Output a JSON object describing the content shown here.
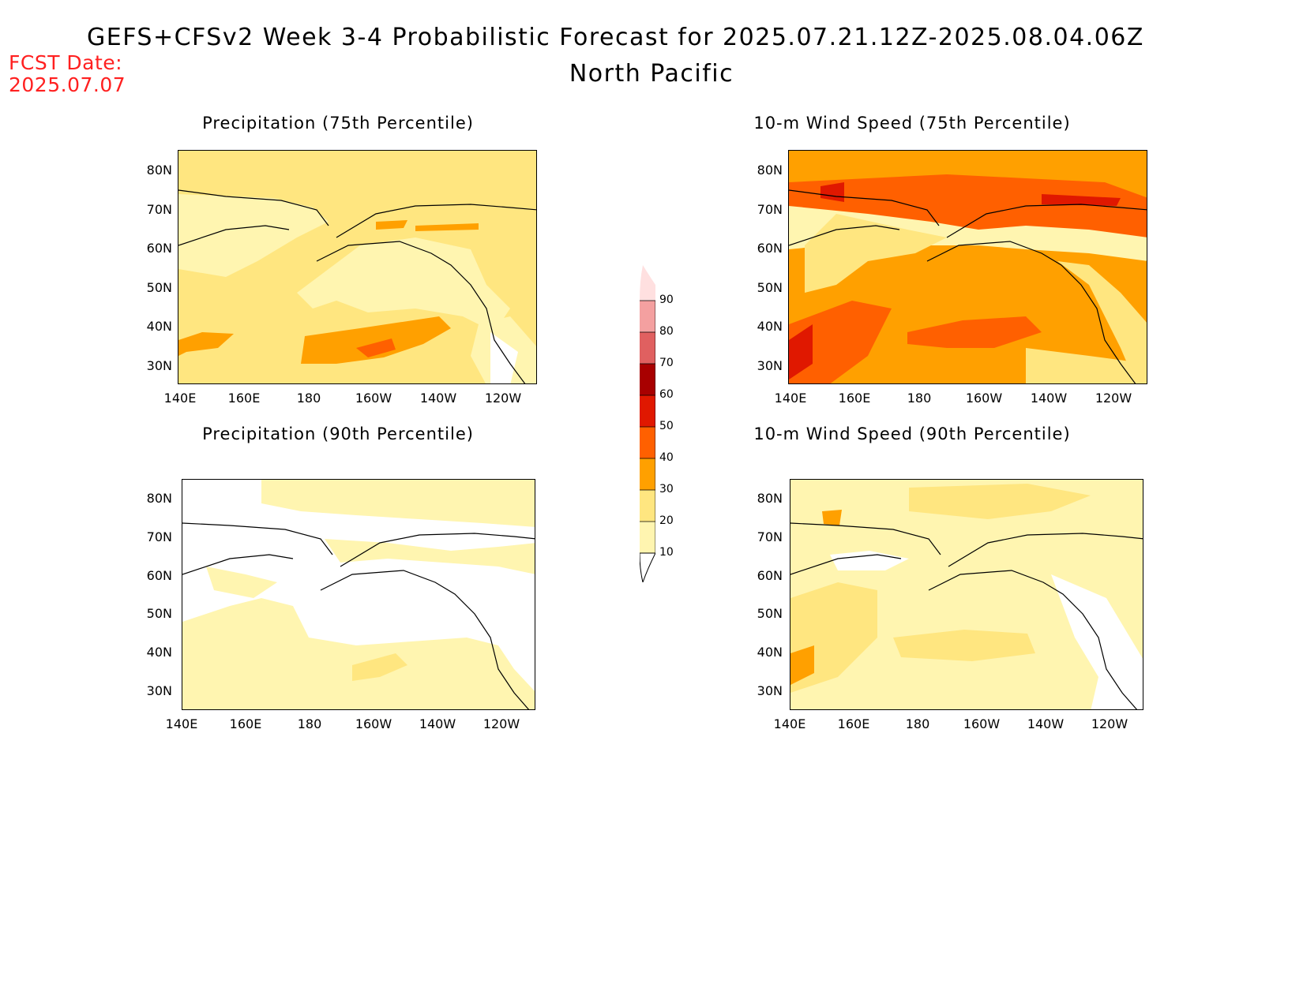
{
  "header": {
    "title": "GEFS+CFSv2 Week 3-4 Probabilistic Forecast for 2025.07.21.12Z-2025.08.04.06Z",
    "subtitle": "North Pacific",
    "fcst_label": "FCST Date:",
    "fcst_value": "2025.07.07"
  },
  "axes": {
    "lat_ticks": [
      "80N",
      "70N",
      "60N",
      "50N",
      "40N",
      "30N"
    ],
    "lon_ticks": [
      "140E",
      "160E",
      "180",
      "160W",
      "140W",
      "120W"
    ]
  },
  "panels": [
    {
      "title": "Precipitation (75th Percentile)",
      "base_color": "#ffe680"
    },
    {
      "title": "10-m Wind Speed (75th Percentile)",
      "base_color": "#ffa000"
    },
    {
      "title": "Precipitation (90th Percentile)",
      "base_color": "#ffffff"
    },
    {
      "title": "10-m Wind Speed (90th Percentile)",
      "base_color": "#fff5b0"
    }
  ],
  "colorbar": {
    "levels": [
      "10",
      "20",
      "30",
      "40",
      "50",
      "60",
      "70",
      "80",
      "90"
    ],
    "colors": [
      "#fff5b0",
      "#ffe680",
      "#ffa000",
      "#ff6000",
      "#e01800",
      "#a80000",
      "#e06060",
      "#f4a0a0",
      "#ffe0e0"
    ]
  }
}
